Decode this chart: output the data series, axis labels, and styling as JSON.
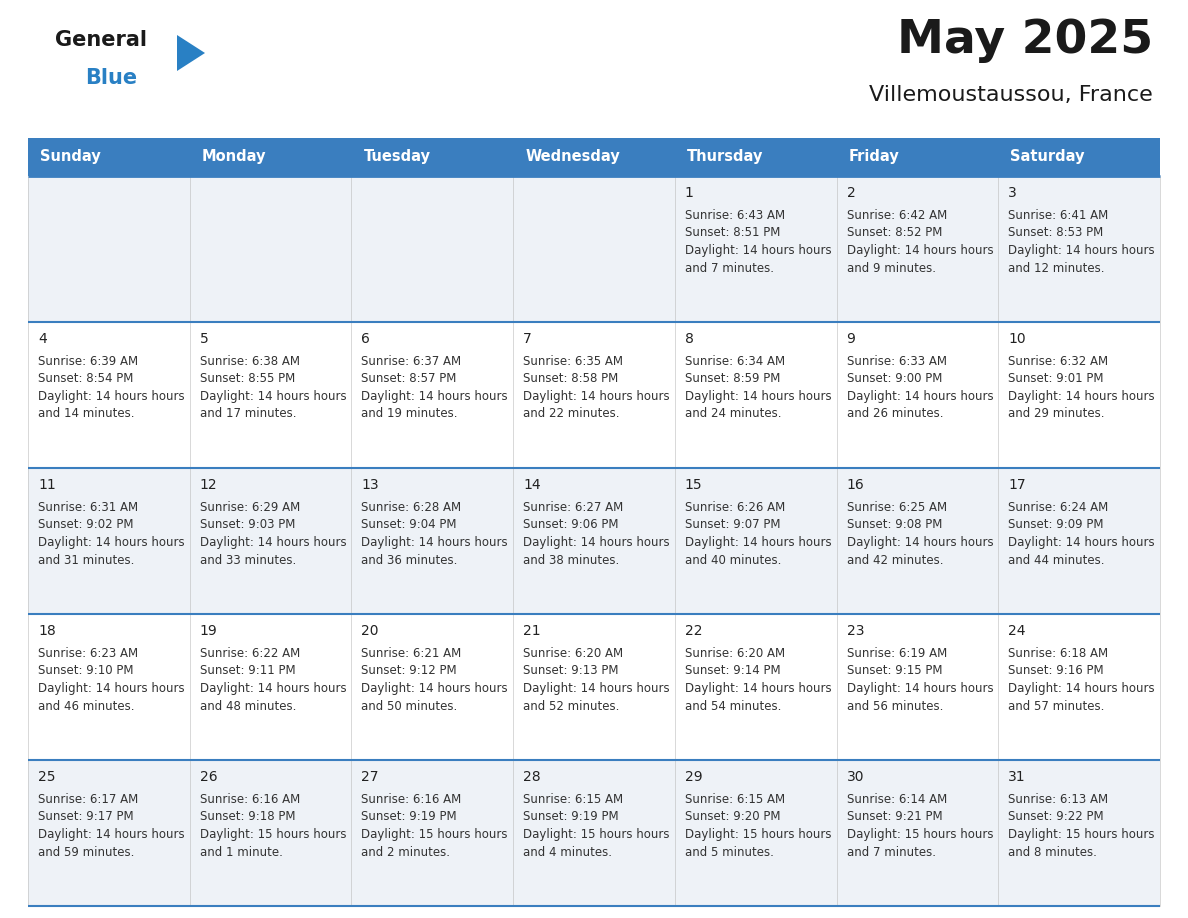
{
  "title": "May 2025",
  "subtitle": "Villemoustaussou, France",
  "days_of_week": [
    "Sunday",
    "Monday",
    "Tuesday",
    "Wednesday",
    "Thursday",
    "Friday",
    "Saturday"
  ],
  "header_bg": "#3a7ebf",
  "header_text": "#ffffff",
  "row_bg_even": "#eef2f7",
  "row_bg_odd": "#ffffff",
  "cell_text_color": "#333333",
  "day_num_color": "#222222",
  "grid_line_color": "#3a7ebf",
  "title_color": "#1a1a1a",
  "subtitle_color": "#1a1a1a",
  "logo_general_color": "#1a1a1a",
  "logo_blue_color": "#2980c4",
  "weeks": [
    [
      {
        "day": "",
        "sunrise": "",
        "sunset": "",
        "daylight": ""
      },
      {
        "day": "",
        "sunrise": "",
        "sunset": "",
        "daylight": ""
      },
      {
        "day": "",
        "sunrise": "",
        "sunset": "",
        "daylight": ""
      },
      {
        "day": "",
        "sunrise": "",
        "sunset": "",
        "daylight": ""
      },
      {
        "day": "1",
        "sunrise": "6:43 AM",
        "sunset": "8:51 PM",
        "daylight": "14 hours and 7 minutes."
      },
      {
        "day": "2",
        "sunrise": "6:42 AM",
        "sunset": "8:52 PM",
        "daylight": "14 hours and 9 minutes."
      },
      {
        "day": "3",
        "sunrise": "6:41 AM",
        "sunset": "8:53 PM",
        "daylight": "14 hours and 12 minutes."
      }
    ],
    [
      {
        "day": "4",
        "sunrise": "6:39 AM",
        "sunset": "8:54 PM",
        "daylight": "14 hours and 14 minutes."
      },
      {
        "day": "5",
        "sunrise": "6:38 AM",
        "sunset": "8:55 PM",
        "daylight": "14 hours and 17 minutes."
      },
      {
        "day": "6",
        "sunrise": "6:37 AM",
        "sunset": "8:57 PM",
        "daylight": "14 hours and 19 minutes."
      },
      {
        "day": "7",
        "sunrise": "6:35 AM",
        "sunset": "8:58 PM",
        "daylight": "14 hours and 22 minutes."
      },
      {
        "day": "8",
        "sunrise": "6:34 AM",
        "sunset": "8:59 PM",
        "daylight": "14 hours and 24 minutes."
      },
      {
        "day": "9",
        "sunrise": "6:33 AM",
        "sunset": "9:00 PM",
        "daylight": "14 hours and 26 minutes."
      },
      {
        "day": "10",
        "sunrise": "6:32 AM",
        "sunset": "9:01 PM",
        "daylight": "14 hours and 29 minutes."
      }
    ],
    [
      {
        "day": "11",
        "sunrise": "6:31 AM",
        "sunset": "9:02 PM",
        "daylight": "14 hours and 31 minutes."
      },
      {
        "day": "12",
        "sunrise": "6:29 AM",
        "sunset": "9:03 PM",
        "daylight": "14 hours and 33 minutes."
      },
      {
        "day": "13",
        "sunrise": "6:28 AM",
        "sunset": "9:04 PM",
        "daylight": "14 hours and 36 minutes."
      },
      {
        "day": "14",
        "sunrise": "6:27 AM",
        "sunset": "9:06 PM",
        "daylight": "14 hours and 38 minutes."
      },
      {
        "day": "15",
        "sunrise": "6:26 AM",
        "sunset": "9:07 PM",
        "daylight": "14 hours and 40 minutes."
      },
      {
        "day": "16",
        "sunrise": "6:25 AM",
        "sunset": "9:08 PM",
        "daylight": "14 hours and 42 minutes."
      },
      {
        "day": "17",
        "sunrise": "6:24 AM",
        "sunset": "9:09 PM",
        "daylight": "14 hours and 44 minutes."
      }
    ],
    [
      {
        "day": "18",
        "sunrise": "6:23 AM",
        "sunset": "9:10 PM",
        "daylight": "14 hours and 46 minutes."
      },
      {
        "day": "19",
        "sunrise": "6:22 AM",
        "sunset": "9:11 PM",
        "daylight": "14 hours and 48 minutes."
      },
      {
        "day": "20",
        "sunrise": "6:21 AM",
        "sunset": "9:12 PM",
        "daylight": "14 hours and 50 minutes."
      },
      {
        "day": "21",
        "sunrise": "6:20 AM",
        "sunset": "9:13 PM",
        "daylight": "14 hours and 52 minutes."
      },
      {
        "day": "22",
        "sunrise": "6:20 AM",
        "sunset": "9:14 PM",
        "daylight": "14 hours and 54 minutes."
      },
      {
        "day": "23",
        "sunrise": "6:19 AM",
        "sunset": "9:15 PM",
        "daylight": "14 hours and 56 minutes."
      },
      {
        "day": "24",
        "sunrise": "6:18 AM",
        "sunset": "9:16 PM",
        "daylight": "14 hours and 57 minutes."
      }
    ],
    [
      {
        "day": "25",
        "sunrise": "6:17 AM",
        "sunset": "9:17 PM",
        "daylight": "14 hours and 59 minutes."
      },
      {
        "day": "26",
        "sunrise": "6:16 AM",
        "sunset": "9:18 PM",
        "daylight": "15 hours and 1 minute."
      },
      {
        "day": "27",
        "sunrise": "6:16 AM",
        "sunset": "9:19 PM",
        "daylight": "15 hours and 2 minutes."
      },
      {
        "day": "28",
        "sunrise": "6:15 AM",
        "sunset": "9:19 PM",
        "daylight": "15 hours and 4 minutes."
      },
      {
        "day": "29",
        "sunrise": "6:15 AM",
        "sunset": "9:20 PM",
        "daylight": "15 hours and 5 minutes."
      },
      {
        "day": "30",
        "sunrise": "6:14 AM",
        "sunset": "9:21 PM",
        "daylight": "15 hours and 7 minutes."
      },
      {
        "day": "31",
        "sunrise": "6:13 AM",
        "sunset": "9:22 PM",
        "daylight": "15 hours and 8 minutes."
      }
    ]
  ]
}
